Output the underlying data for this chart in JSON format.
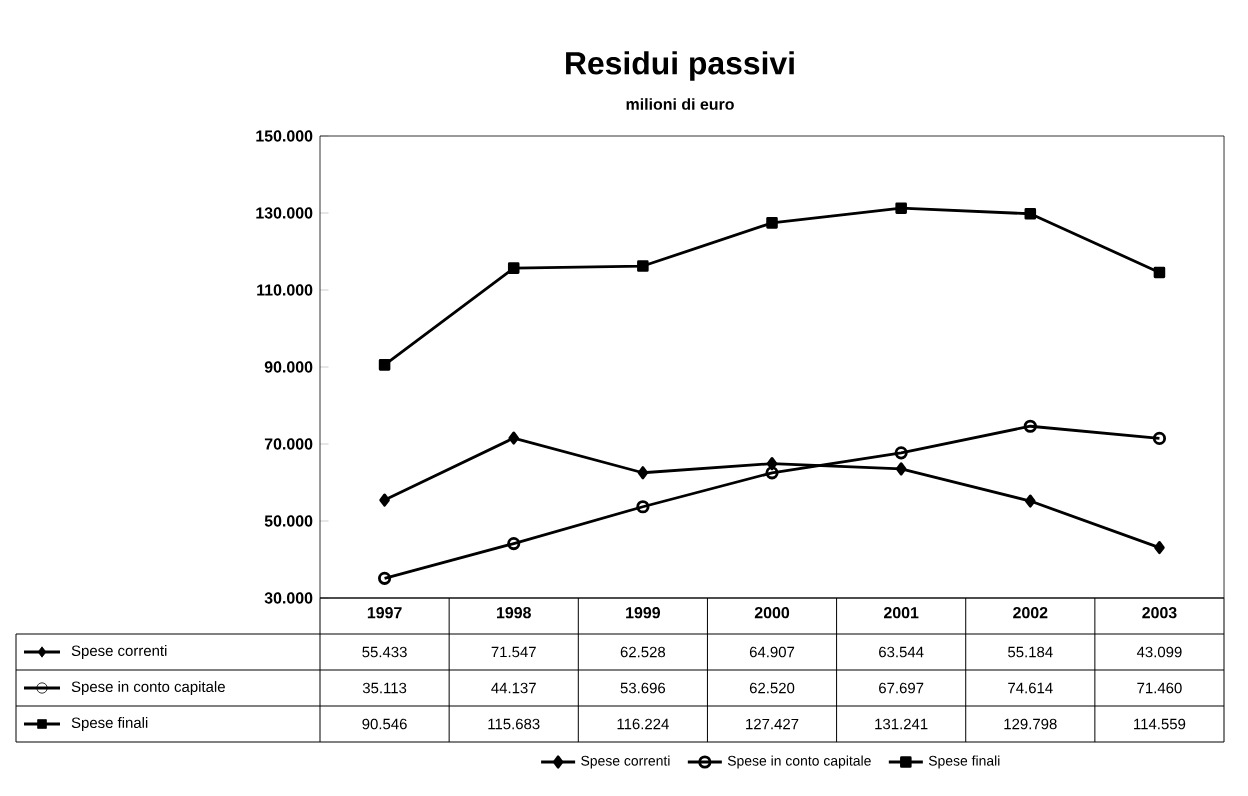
{
  "chart_data": {
    "type": "line",
    "title": "Residui passivi",
    "subtitle": "milioni di euro",
    "categories": [
      "1997",
      "1998",
      "1999",
      "2000",
      "2001",
      "2002",
      "2003"
    ],
    "ylim": [
      30000,
      150000
    ],
    "yticks": [
      {
        "value": 30000,
        "label": "30.000"
      },
      {
        "value": 50000,
        "label": "50.000"
      },
      {
        "value": 70000,
        "label": "70.000"
      },
      {
        "value": 90000,
        "label": "90.000"
      },
      {
        "value": 110000,
        "label": "110.000"
      },
      {
        "value": 130000,
        "label": "130.000"
      },
      {
        "value": 150000,
        "label": "150.000"
      }
    ],
    "legend": "bottom",
    "series": [
      {
        "name": "Spese correnti",
        "color": "#000000",
        "marker": "diamond",
        "values": [
          55433,
          71547,
          62528,
          64907,
          63544,
          55184,
          43099
        ],
        "value_labels": [
          "55.433",
          "71.547",
          "62.528",
          "64.907",
          "63.544",
          "55.184",
          "43.099"
        ]
      },
      {
        "name": "Spese in conto capitale",
        "color": "#000000",
        "marker": "circle",
        "values": [
          35113,
          44137,
          53696,
          62520,
          67697,
          74614,
          71460
        ],
        "value_labels": [
          "35.113",
          "44.137",
          "53.696",
          "62.520",
          "67.697",
          "74.614",
          "71.460"
        ]
      },
      {
        "name": "Spese finali",
        "color": "#000000",
        "marker": "square",
        "values": [
          90546,
          115683,
          116224,
          127427,
          131241,
          129798,
          114559
        ],
        "value_labels": [
          "90.546",
          "115.683",
          "116.224",
          "127.427",
          "131.241",
          "129.798",
          "114.559"
        ]
      }
    ]
  }
}
